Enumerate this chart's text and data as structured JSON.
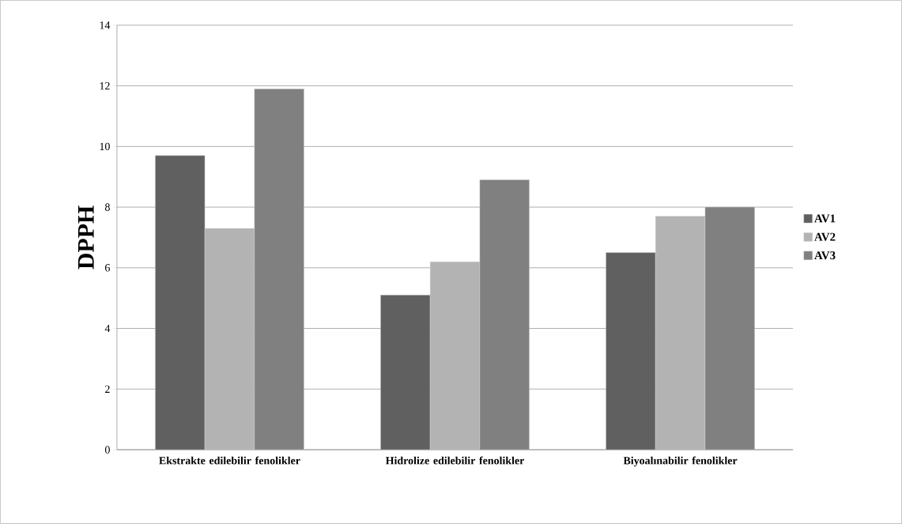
{
  "chart_data": {
    "type": "bar",
    "ylabel": "DPPH",
    "categories": [
      "Ekstrakte edilebilir fenolikler",
      "Hidrolize edilebilir fenolikler",
      "Biyoalınabilir fenolikler"
    ],
    "series": [
      {
        "name": "AV1",
        "color": "#606060",
        "values": [
          9.7,
          5.1,
          6.5
        ]
      },
      {
        "name": "AV2",
        "color": "#b3b3b3",
        "values": [
          7.3,
          6.2,
          7.7
        ]
      },
      {
        "name": "AV3",
        "color": "#808080",
        "values": [
          11.9,
          8.9,
          8.0
        ]
      }
    ],
    "ylim": [
      0,
      14
    ],
    "yticks": [
      0,
      2,
      4,
      6,
      8,
      10,
      12,
      14
    ],
    "grid": "y",
    "legend": "right"
  }
}
